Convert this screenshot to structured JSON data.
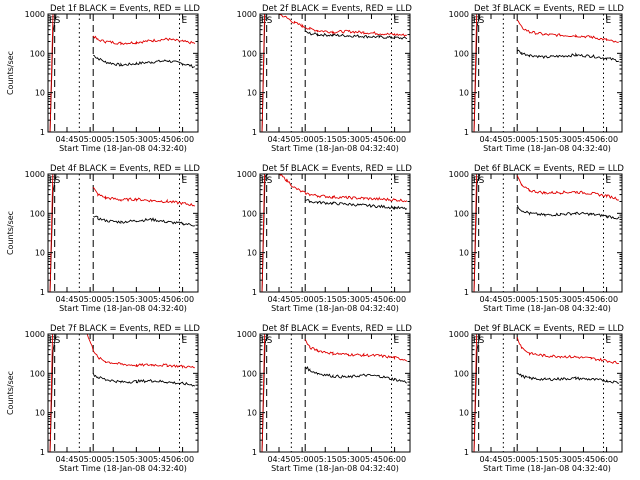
{
  "figure": {
    "legend_text": "BLACK = Events, RED = LLD",
    "xlabel": "Start Time (18-Jan-08 04:32:40)",
    "ylabel": "Counts/sec",
    "x_tick_labels": [
      "04:45",
      "05:00",
      "05:15",
      "05:30",
      "05:45",
      "06:00"
    ],
    "y_tick_labels": [
      "1",
      "10",
      "100",
      "1000"
    ],
    "marker_start": "ES",
    "marker_end": "E",
    "colors": {
      "events": "#000000",
      "lld": "#e00000",
      "background": "#ffffff"
    }
  },
  "chart_data": [
    {
      "type": "line",
      "title": "Det 1f BLACK = Events, RED = LLD",
      "detector": "Det 1f",
      "yscale": "log",
      "ylim": [
        1,
        1000
      ],
      "xlim": [
        "04:32:40",
        "06:10"
      ],
      "series": [
        {
          "name": "Events",
          "color": "#000000",
          "x": [
            "05:02",
            "05:05",
            "05:10",
            "05:20",
            "05:30",
            "05:40",
            "05:50",
            "06:00",
            "06:08"
          ],
          "values": [
            90,
            75,
            60,
            50,
            55,
            60,
            65,
            55,
            45
          ]
        },
        {
          "name": "LLD",
          "color": "#e00000",
          "x": [
            "05:02",
            "05:05",
            "05:10",
            "05:20",
            "05:30",
            "05:40",
            "05:50",
            "06:00",
            "06:08"
          ],
          "values": [
            280,
            220,
            200,
            180,
            190,
            210,
            230,
            200,
            180
          ]
        }
      ]
    },
    {
      "type": "line",
      "title": "Det 2f BLACK = Events, RED = LLD",
      "detector": "Det 2f",
      "yscale": "log",
      "ylim": [
        1,
        1000
      ],
      "xlim": [
        "04:32:40",
        "06:10"
      ],
      "series": [
        {
          "name": "Events",
          "color": "#000000",
          "x": [
            "05:02",
            "05:05",
            "05:10",
            "05:20",
            "05:30",
            "05:40",
            "05:50",
            "06:00",
            "06:08"
          ],
          "values": [
            350,
            320,
            300,
            290,
            280,
            270,
            260,
            250,
            240
          ]
        },
        {
          "name": "LLD",
          "color": "#e00000",
          "x": [
            "04:45",
            "04:50",
            "04:55",
            "05:00",
            "05:05",
            "05:10",
            "05:20",
            "05:30",
            "05:40",
            "05:50",
            "06:00",
            "06:08"
          ],
          "values": [
            1000,
            800,
            600,
            500,
            420,
            380,
            350,
            360,
            340,
            320,
            300,
            290
          ]
        }
      ]
    },
    {
      "type": "line",
      "title": "Det 3f BLACK = Events, RED = LLD",
      "detector": "Det 3f",
      "yscale": "log",
      "ylim": [
        1,
        1000
      ],
      "xlim": [
        "04:32:40",
        "06:10"
      ],
      "series": [
        {
          "name": "Events",
          "color": "#000000",
          "x": [
            "05:02",
            "05:05",
            "05:10",
            "05:20",
            "05:30",
            "05:40",
            "05:50",
            "06:00",
            "06:08"
          ],
          "values": [
            120,
            100,
            90,
            80,
            85,
            90,
            85,
            75,
            65
          ]
        },
        {
          "name": "LLD",
          "color": "#e00000",
          "x": [
            "05:02",
            "05:05",
            "05:10",
            "05:20",
            "05:30",
            "05:40",
            "05:50",
            "06:00",
            "06:08"
          ],
          "values": [
            700,
            450,
            350,
            300,
            290,
            280,
            260,
            220,
            180
          ]
        }
      ]
    },
    {
      "type": "line",
      "title": "Det 4f BLACK = Events, RED = LLD",
      "detector": "Det 4f",
      "yscale": "log",
      "ylim": [
        1,
        1000
      ],
      "xlim": [
        "04:32:40",
        "06:10"
      ],
      "series": [
        {
          "name": "Events",
          "color": "#000000",
          "x": [
            "05:02",
            "05:05",
            "05:10",
            "05:20",
            "05:30",
            "05:40",
            "05:50",
            "06:00",
            "06:08"
          ],
          "values": [
            90,
            75,
            65,
            60,
            65,
            70,
            60,
            55,
            50
          ]
        },
        {
          "name": "LLD",
          "color": "#e00000",
          "x": [
            "05:02",
            "05:05",
            "05:10",
            "05:20",
            "05:30",
            "05:40",
            "05:50",
            "06:00",
            "06:08"
          ],
          "values": [
            450,
            300,
            250,
            220,
            230,
            210,
            200,
            180,
            160
          ]
        }
      ]
    },
    {
      "type": "line",
      "title": "Det 5f BLACK = Events, RED = LLD",
      "detector": "Det 5f",
      "yscale": "log",
      "ylim": [
        1,
        1000
      ],
      "xlim": [
        "04:32:40",
        "06:10"
      ],
      "series": [
        {
          "name": "Events",
          "color": "#000000",
          "x": [
            "05:02",
            "05:05",
            "05:10",
            "05:20",
            "05:30",
            "05:40",
            "05:50",
            "06:00",
            "06:08"
          ],
          "values": [
            220,
            200,
            190,
            180,
            170,
            160,
            150,
            140,
            130
          ]
        },
        {
          "name": "LLD",
          "color": "#e00000",
          "x": [
            "04:45",
            "04:50",
            "04:55",
            "05:00",
            "05:05",
            "05:10",
            "05:20",
            "05:30",
            "05:40",
            "05:50",
            "06:00",
            "06:08"
          ],
          "values": [
            1000,
            700,
            450,
            350,
            300,
            280,
            260,
            250,
            240,
            230,
            220,
            210
          ]
        }
      ]
    },
    {
      "type": "line",
      "title": "Det 6f BLACK = Events, RED = LLD",
      "detector": "Det 6f",
      "yscale": "log",
      "ylim": [
        1,
        1000
      ],
      "xlim": [
        "04:32:40",
        "06:10"
      ],
      "series": [
        {
          "name": "Events",
          "color": "#000000",
          "x": [
            "05:02",
            "05:05",
            "05:10",
            "05:20",
            "05:30",
            "05:40",
            "05:50",
            "06:00",
            "06:08"
          ],
          "values": [
            150,
            120,
            100,
            90,
            95,
            100,
            95,
            85,
            75
          ]
        },
        {
          "name": "LLD",
          "color": "#e00000",
          "x": [
            "05:02",
            "05:05",
            "05:10",
            "05:20",
            "05:30",
            "05:40",
            "05:50",
            "06:00",
            "06:08"
          ],
          "values": [
            900,
            500,
            380,
            330,
            340,
            350,
            320,
            280,
            230
          ]
        }
      ]
    },
    {
      "type": "line",
      "title": "Det 7f BLACK = Events, RED = LLD",
      "detector": "Det 7f",
      "yscale": "log",
      "ylim": [
        1,
        1000
      ],
      "xlim": [
        "04:32:40",
        "06:10"
      ],
      "series": [
        {
          "name": "Events",
          "color": "#000000",
          "x": [
            "05:02",
            "05:05",
            "05:10",
            "05:20",
            "05:30",
            "05:40",
            "05:50",
            "06:00",
            "06:08"
          ],
          "values": [
            95,
            80,
            70,
            60,
            62,
            65,
            60,
            55,
            50
          ]
        },
        {
          "name": "LLD",
          "color": "#e00000",
          "x": [
            "04:58",
            "05:02",
            "05:05",
            "05:10",
            "05:20",
            "05:30",
            "05:40",
            "05:50",
            "06:00",
            "06:08"
          ],
          "values": [
            1000,
            400,
            250,
            200,
            170,
            160,
            165,
            160,
            150,
            140
          ]
        }
      ]
    },
    {
      "type": "line",
      "title": "Det 8f BLACK = Events, RED = LLD",
      "detector": "Det 8f",
      "yscale": "log",
      "ylim": [
        1,
        1000
      ],
      "xlim": [
        "04:32:40",
        "06:10"
      ],
      "series": [
        {
          "name": "Events",
          "color": "#000000",
          "x": [
            "05:02",
            "05:05",
            "05:10",
            "05:20",
            "05:30",
            "05:40",
            "05:50",
            "06:00",
            "06:08"
          ],
          "values": [
            150,
            120,
            100,
            85,
            80,
            90,
            85,
            70,
            60
          ]
        },
        {
          "name": "LLD",
          "color": "#e00000",
          "x": [
            "05:02",
            "05:05",
            "05:10",
            "05:20",
            "05:30",
            "05:40",
            "05:50",
            "06:00",
            "06:08"
          ],
          "values": [
            700,
            450,
            380,
            320,
            300,
            290,
            280,
            250,
            220
          ]
        }
      ]
    },
    {
      "type": "line",
      "title": "Det 9f BLACK = Events, RED = LLD",
      "detector": "Det 9f",
      "yscale": "log",
      "ylim": [
        1,
        1000
      ],
      "xlim": [
        "04:32:40",
        "06:10"
      ],
      "series": [
        {
          "name": "Events",
          "color": "#000000",
          "x": [
            "05:02",
            "05:05",
            "05:10",
            "05:20",
            "05:30",
            "05:40",
            "05:50",
            "06:00",
            "06:08"
          ],
          "values": [
            100,
            85,
            75,
            70,
            72,
            75,
            70,
            65,
            58
          ]
        },
        {
          "name": "LLD",
          "color": "#e00000",
          "x": [
            "05:02",
            "05:05",
            "05:10",
            "05:20",
            "05:30",
            "05:40",
            "05:50",
            "06:00",
            "06:08"
          ],
          "values": [
            800,
            450,
            320,
            280,
            270,
            260,
            240,
            210,
            180
          ]
        }
      ]
    }
  ]
}
